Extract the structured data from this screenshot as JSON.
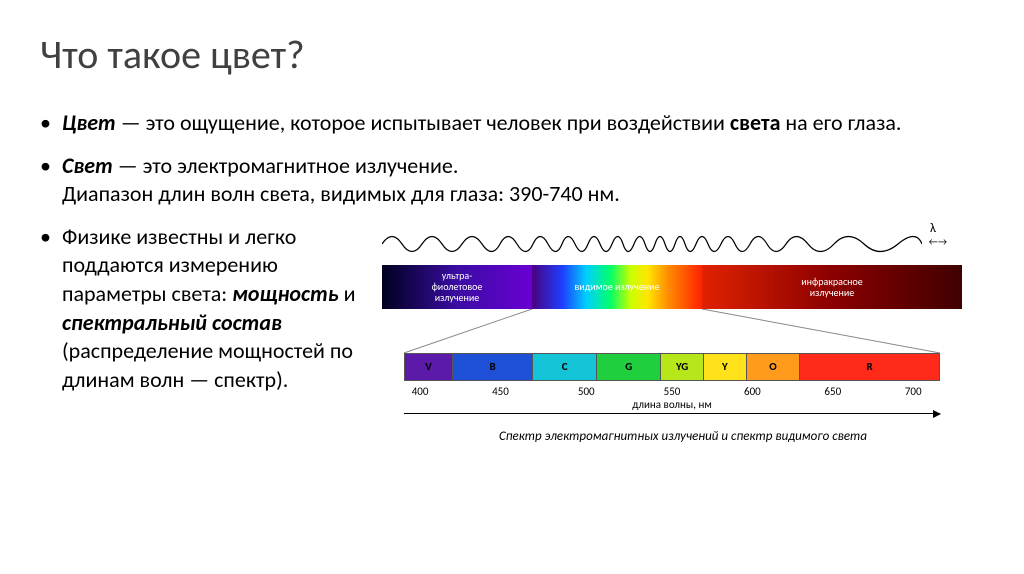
{
  "title": "Что такое цвет?",
  "bullets": {
    "b1": {
      "term": "Цвет",
      "rest1": " — это ощущение, которое испытывает человек при воздействии ",
      "bold2": "света",
      "rest2": " на его глаза."
    },
    "b2": {
      "term": "Свет",
      "rest1": " — это электромагнитное излучение.",
      "line2": "Диапазон длин волн света, видимых для глаза: 390-740 нм."
    },
    "b3": {
      "line1": "Физике известны и легко поддаются измерению параметры света: ",
      "bold1": "мощность",
      "mid": " и ",
      "bold2": "спектральный состав",
      "rest": " (распределение мощностей по длинам волн — спектр)."
    }
  },
  "figure": {
    "lambda": "λ",
    "lambda_arrows": "← →",
    "band_uv": "ультра-\nфиолетовое\nизлучение",
    "band_vis": "видимое излучение",
    "band_ir": "инфракрасное\nизлучение",
    "segments": [
      {
        "label": "V",
        "width": 9,
        "color": "#5b1aa8"
      },
      {
        "label": "B",
        "width": 15,
        "color": "#1e4fd7"
      },
      {
        "label": "C",
        "width": 12,
        "color": "#12c4d6"
      },
      {
        "label": "G",
        "width": 12,
        "color": "#1fcf3d"
      },
      {
        "label": "YG",
        "width": 8,
        "color": "#b7e61a"
      },
      {
        "label": "Y",
        "width": 8,
        "color": "#ffe21a"
      },
      {
        "label": "O",
        "width": 10,
        "color": "#ff9a1a"
      },
      {
        "label": "R",
        "width": 26,
        "color": "#ff2a1a"
      }
    ],
    "ticks": [
      {
        "label": "400",
        "pos": 3
      },
      {
        "label": "450",
        "pos": 18
      },
      {
        "label": "500",
        "pos": 34
      },
      {
        "label": "550",
        "pos": 50
      },
      {
        "label": "600",
        "pos": 65
      },
      {
        "label": "650",
        "pos": 80
      },
      {
        "label": "700",
        "pos": 95
      }
    ],
    "axis_label": "длина волны, нм",
    "caption": "Спектр электромагнитных излучений и спектр видимого света"
  }
}
